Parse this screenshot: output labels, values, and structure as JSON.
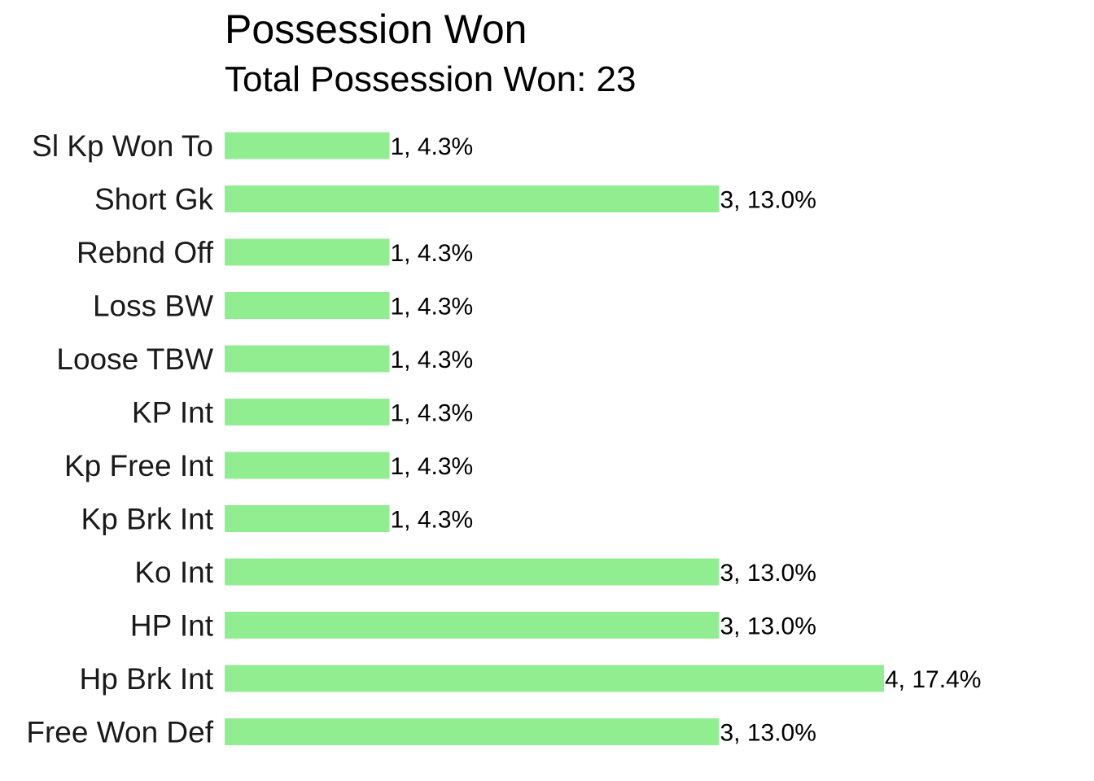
{
  "chart_data": {
    "type": "bar",
    "orientation": "horizontal",
    "title": "Possession Won",
    "subtitle": "Total Possession Won: 23",
    "categories": [
      "Sl Kp Won To",
      "Short Gk",
      "Rebnd Off",
      "Loss BW",
      "Loose TBW",
      "KP Int",
      "Kp Free Int",
      "Kp Brk Int",
      "Ko Int",
      "HP Int",
      "Hp Brk Int",
      "Free Won Def"
    ],
    "values": [
      1,
      3,
      1,
      1,
      1,
      1,
      1,
      1,
      3,
      3,
      4,
      3
    ],
    "data_labels": [
      "1, 4.3%",
      "3, 13.0%",
      "1, 4.3%",
      "1, 4.3%",
      "1, 4.3%",
      "1, 4.3%",
      "1, 4.3%",
      "1, 4.3%",
      "3, 13.0%",
      "3, 13.0%",
      "4, 17.4%",
      "3, 13.0%"
    ],
    "xlim": [
      0,
      4
    ],
    "xlabel": "",
    "ylabel": "",
    "grid": false,
    "bar_color": "#90ee90"
  }
}
